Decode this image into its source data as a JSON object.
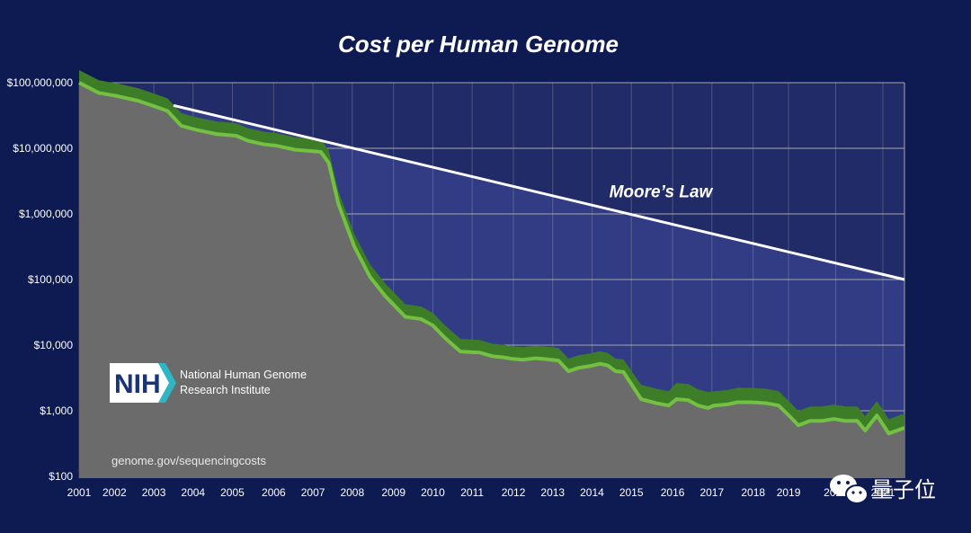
{
  "chart_data": {
    "type": "area",
    "title": "Cost per Human Genome",
    "y_scale": "log",
    "ylim": [
      100,
      200000000
    ],
    "xlim": [
      2001.0,
      2022.0
    ],
    "y_ticks": [
      {
        "value": 100000000,
        "label": "$100,000,000"
      },
      {
        "value": 10000000,
        "label": "$10,000,000"
      },
      {
        "value": 1000000,
        "label": "$1,000,000"
      },
      {
        "value": 100000,
        "label": "$100,000"
      },
      {
        "value": 10000,
        "label": "$10,000"
      },
      {
        "value": 1000,
        "label": "$1,000"
      },
      {
        "value": 100,
        "label": "$100"
      }
    ],
    "x_ticks": [
      {
        "value": 2001.0,
        "label": "2001"
      },
      {
        "value": 2001.9,
        "label": "2002"
      },
      {
        "value": 2002.9,
        "label": "2003"
      },
      {
        "value": 2003.9,
        "label": "2004"
      },
      {
        "value": 2004.9,
        "label": "2005"
      },
      {
        "value": 2005.95,
        "label": "2006"
      },
      {
        "value": 2006.95,
        "label": "2007"
      },
      {
        "value": 2007.95,
        "label": "2008"
      },
      {
        "value": 2009.0,
        "label": "2009"
      },
      {
        "value": 2010.0,
        "label": "2010"
      },
      {
        "value": 2011.0,
        "label": "2011"
      },
      {
        "value": 2012.05,
        "label": "2012"
      },
      {
        "value": 2013.05,
        "label": "2013"
      },
      {
        "value": 2014.05,
        "label": "2014"
      },
      {
        "value": 2015.05,
        "label": "2015"
      },
      {
        "value": 2016.1,
        "label": "2016"
      },
      {
        "value": 2017.1,
        "label": "2017"
      },
      {
        "value": 2018.15,
        "label": "2018"
      },
      {
        "value": 2019.05,
        "label": "2019"
      },
      {
        "value": 2020.25,
        "label": "2020"
      },
      {
        "value": 2021.45,
        "label": "2021"
      }
    ],
    "genome_cost": {
      "x": [
        2001.0,
        2001.5,
        2002.0,
        2002.5,
        2003.0,
        2003.25,
        2003.6,
        2004.0,
        2004.5,
        2005.0,
        2005.3,
        2005.7,
        2006.0,
        2006.5,
        2007.0,
        2007.15,
        2007.35,
        2007.6,
        2008.0,
        2008.4,
        2008.8,
        2009.3,
        2009.7,
        2010.0,
        2010.3,
        2010.7,
        2011.0,
        2011.2,
        2011.5,
        2011.8,
        2012.0,
        2012.3,
        2012.6,
        2012.9,
        2013.2,
        2013.45,
        2013.7,
        2014.0,
        2014.25,
        2014.45,
        2014.65,
        2014.85,
        2015.3,
        2015.7,
        2016.0,
        2016.2,
        2016.5,
        2016.75,
        2017.0,
        2017.15,
        2017.5,
        2017.75,
        2018.1,
        2018.5,
        2018.8,
        2019.1,
        2019.3,
        2019.6,
        2019.9,
        2020.2,
        2020.5,
        2020.8,
        2021.0,
        2021.3,
        2021.6,
        2022.0
      ],
      "values": [
        100000000,
        70000000,
        62000000,
        53000000,
        42000000,
        37000000,
        22000000,
        19000000,
        16500000,
        15500000,
        13000000,
        11500000,
        11000000,
        9500000,
        9000000,
        8800000,
        6000000,
        1400000,
        320000,
        110000,
        55000,
        27000,
        25000,
        20000,
        13000,
        8000,
        7800,
        7700,
        6800,
        6500,
        6200,
        6000,
        6300,
        6100,
        5800,
        4000,
        4500,
        4800,
        5200,
        4900,
        4000,
        3900,
        1500,
        1300,
        1200,
        1500,
        1450,
        1200,
        1100,
        1200,
        1250,
        1350,
        1350,
        1300,
        1200,
        800,
        600,
        700,
        700,
        750,
        700,
        700,
        500,
        850,
        450,
        550
      ]
    },
    "moores_law": {
      "x": [
        2003.4,
        2022.0
      ],
      "values": [
        45000000,
        100000
      ]
    },
    "annotations": [
      {
        "text": "Moore’s Law",
        "x": 2015.8,
        "y": 1800000
      }
    ],
    "logo": {
      "mark": "NIH",
      "lines": [
        "National Human Genome",
        "Research Institute"
      ]
    },
    "source": "genome.gov/sequencingcosts",
    "watermark": "量子位",
    "grid": true,
    "colors": {
      "background": "#0e1a52",
      "plot_area": "#202b68",
      "gap_fill": "#313c85",
      "cost_area": "#6b6b6b",
      "cost_band_dark": "#3d7d28",
      "cost_band_light": "#74c043",
      "moore_line": "#ffffff",
      "grid": "#a8a8a8"
    }
  }
}
